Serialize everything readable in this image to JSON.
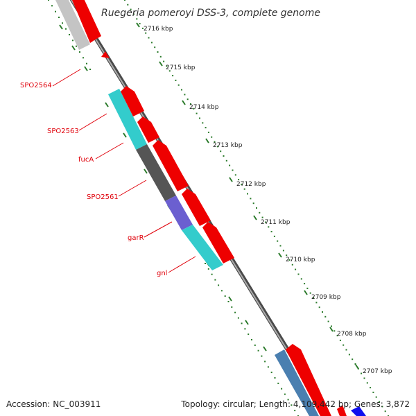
{
  "title": "Ruegeria pomeroyi DSS-3, complete genome",
  "accession": "Accession: NC_003911",
  "summary": "Topology: circular; Length: 4,109,442 bp; Genes: 3,872",
  "ticks": [
    "2716 kbp",
    "2715 kbp",
    "2714 kbp",
    "2713 kbp",
    "2712 kbp",
    "2711 kbp",
    "2710 kbp",
    "2709 kbp",
    "2708 kbp",
    "2707 kbp"
  ],
  "genes": [
    "SPO2564",
    "SPO2563",
    "fucA",
    "SPO2561",
    "garR",
    "gnl"
  ],
  "colors": {
    "forward": "#ee0000",
    "backbone": "#808080",
    "tick": "#2a7a2a",
    "cyan": "#33cccc",
    "gray": "#555555",
    "purple": "#6b5fd0",
    "steel": "#4a7fb0",
    "blue": "#1010ee",
    "label": "#e0000a"
  }
}
